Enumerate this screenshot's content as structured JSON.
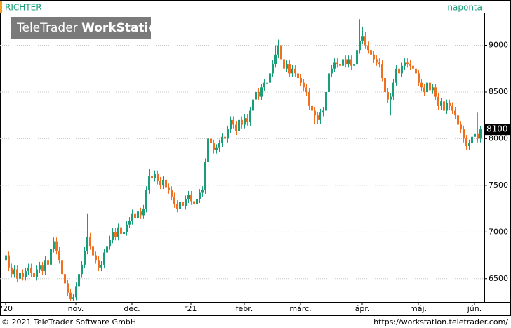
{
  "chart_data": {
    "type": "candlestick",
    "title": "RICHTER",
    "subtitle": "naponta",
    "watermark": {
      "brand": "TeleTrader",
      "product": "WorkStation"
    },
    "footer": {
      "copyright": "© 2021 TeleTrader Software GmbH",
      "url": "https://workstation.teletrader.com/"
    },
    "up_color": "#1a9e78",
    "down_color": "#f07020",
    "xlim": [
      -2,
      170.5
    ],
    "xticks": [
      {
        "value": 0,
        "label": "'20"
      },
      {
        "value": 25,
        "label": "nov."
      },
      {
        "value": 45,
        "label": "dec."
      },
      {
        "value": 66,
        "label": "'21"
      },
      {
        "value": 85,
        "label": "febr."
      },
      {
        "value": 105,
        "label": "márc."
      },
      {
        "value": 127,
        "label": "ápr."
      },
      {
        "value": 147,
        "label": "máj."
      },
      {
        "value": 167,
        "label": "jún."
      }
    ],
    "ylim": [
      6250,
      9350
    ],
    "yticks": [
      6500,
      7000,
      7500,
      8000,
      8500,
      9000
    ],
    "grid": true,
    "open": [
      6700,
      6750,
      6620,
      6550,
      6600,
      6500,
      6560,
      6520,
      6580,
      6620,
      6560,
      6520,
      6600,
      6640,
      6580,
      6700,
      6650,
      6820,
      6900,
      6800,
      6700,
      6550,
      6450,
      6350,
      6280,
      6300,
      6420,
      6550,
      6650,
      6800,
      6950,
      6850,
      6750,
      6700,
      6620,
      6650,
      6780,
      6850,
      6920,
      7000,
      6950,
      7050,
      6980,
      7000,
      7080,
      7120,
      7200,
      7150,
      7220,
      7180,
      7250,
      7450,
      7600,
      7580,
      7620,
      7550,
      7500,
      7560,
      7480,
      7450,
      7380,
      7300,
      7250,
      7320,
      7280,
      7350,
      7400,
      7330,
      7300,
      7350,
      7420,
      7450,
      7750,
      8000,
      7950,
      7880,
      7900,
      7950,
      8020,
      8000,
      8100,
      8200,
      8150,
      8080,
      8200,
      8150,
      8220,
      8180,
      8300,
      8420,
      8500,
      8450,
      8550,
      8600,
      8600,
      8700,
      8800,
      8900,
      9000,
      8850,
      8750,
      8800,
      8700,
      8750,
      8700,
      8650,
      8600,
      8550,
      8500,
      8350,
      8300,
      8250,
      8200,
      8280,
      8300,
      8500,
      8700,
      8750,
      8820,
      8800,
      8780,
      8850,
      8800,
      8850,
      8780,
      8800,
      8950,
      9050,
      9100,
      9000,
      8950,
      8900,
      8850,
      8820,
      8800,
      8650,
      8500,
      8420,
      8450,
      8600,
      8750,
      8700,
      8780,
      8820,
      8800,
      8780,
      8750,
      8700,
      8600,
      8550,
      8500,
      8600,
      8520,
      8550,
      8450,
      8350,
      8400,
      8300,
      8380,
      8350,
      8300,
      8250,
      8150,
      8100,
      8000,
      7920,
      7950,
      8020,
      8050,
      8000
    ],
    "high": [
      6790,
      6790,
      6660,
      6640,
      6640,
      6600,
      6600,
      6620,
      6660,
      6660,
      6600,
      6640,
      6680,
      6680,
      6740,
      6740,
      6860,
      6940,
      6940,
      6840,
      6740,
      6590,
      6490,
      6390,
      6340,
      6460,
      6590,
      6690,
      6840,
      7200,
      6990,
      6890,
      6790,
      6740,
      6690,
      6820,
      6890,
      6960,
      7040,
      7040,
      7090,
      7090,
      7040,
      7120,
      7160,
      7240,
      7240,
      7260,
      7260,
      7290,
      7490,
      7680,
      7640,
      7660,
      7660,
      7590,
      7600,
      7600,
      7520,
      7490,
      7420,
      7340,
      7360,
      7360,
      7390,
      7440,
      7440,
      7370,
      7390,
      7460,
      7490,
      7790,
      8150,
      8040,
      7990,
      7940,
      7990,
      8060,
      8060,
      8140,
      8240,
      8240,
      8190,
      8240,
      8240,
      8260,
      8260,
      8340,
      8460,
      8540,
      8540,
      8590,
      8640,
      8640,
      8740,
      8840,
      9000,
      9060,
      9040,
      8890,
      8840,
      8840,
      8790,
      8790,
      8740,
      8690,
      8640,
      8590,
      8540,
      8390,
      8340,
      8290,
      8320,
      8340,
      8540,
      8740,
      8790,
      8860,
      8860,
      8840,
      8890,
      8890,
      8890,
      8890,
      8840,
      8990,
      9280,
      9200,
      9140,
      9040,
      8990,
      8940,
      8890,
      8860,
      8840,
      8690,
      8540,
      8490,
      8640,
      8790,
      8790,
      8820,
      8860,
      8860,
      8840,
      8820,
      8790,
      8740,
      8640,
      8590,
      8640,
      8640,
      8590,
      8590,
      8490,
      8440,
      8440,
      8420,
      8420,
      8390,
      8340,
      8290,
      8190,
      8140,
      8040,
      7990,
      8060,
      8090,
      8280,
      8140
    ],
    "low": [
      6660,
      6580,
      6510,
      6510,
      6460,
      6460,
      6480,
      6480,
      6540,
      6520,
      6480,
      6480,
      6560,
      6540,
      6540,
      6610,
      6610,
      6780,
      6760,
      6660,
      6510,
      6410,
      6310,
      6260,
      6260,
      6270,
      6380,
      6510,
      6610,
      6760,
      6810,
      6710,
      6660,
      6580,
      6580,
      6610,
      6740,
      6810,
      6880,
      6910,
      6910,
      6940,
      6940,
      6960,
      7040,
      7080,
      7110,
      7110,
      7140,
      7140,
      7210,
      7410,
      7540,
      7540,
      7510,
      7460,
      7460,
      7440,
      7410,
      7340,
      7260,
      7210,
      7210,
      7240,
      7240,
      7310,
      7290,
      7260,
      7260,
      7310,
      7380,
      7410,
      7710,
      7910,
      7840,
      7840,
      7860,
      7910,
      7960,
      7960,
      8060,
      8110,
      8040,
      8040,
      8110,
      8110,
      8140,
      8140,
      8260,
      8380,
      8410,
      8410,
      8510,
      8560,
      8560,
      8660,
      8760,
      8860,
      8810,
      8710,
      8710,
      8660,
      8660,
      8660,
      8610,
      8560,
      8510,
      8460,
      8310,
      8260,
      8160,
      8160,
      8160,
      8240,
      8260,
      8460,
      8660,
      8710,
      8760,
      8740,
      8740,
      8760,
      8760,
      8740,
      8740,
      8760,
      8910,
      9010,
      8960,
      8910,
      8860,
      8810,
      8780,
      8760,
      8610,
      8460,
      8380,
      8250,
      8410,
      8560,
      8660,
      8660,
      8740,
      8760,
      8740,
      8710,
      8660,
      8560,
      8510,
      8460,
      8460,
      8480,
      8480,
      8410,
      8310,
      8310,
      8260,
      8260,
      8310,
      8260,
      8210,
      8060,
      8060,
      7960,
      7880,
      7880,
      7910,
      7980,
      7960,
      7960
    ],
    "close": [
      6750,
      6620,
      6550,
      6600,
      6500,
      6560,
      6520,
      6580,
      6620,
      6560,
      6520,
      6600,
      6640,
      6580,
      6700,
      6650,
      6820,
      6900,
      6800,
      6700,
      6550,
      6450,
      6350,
      6280,
      6300,
      6420,
      6550,
      6650,
      6800,
      6950,
      6850,
      6750,
      6700,
      6620,
      6650,
      6780,
      6850,
      6920,
      7000,
      6950,
      7050,
      6980,
      7000,
      7080,
      7120,
      7200,
      7150,
      7220,
      7180,
      7250,
      7450,
      7600,
      7580,
      7620,
      7550,
      7500,
      7560,
      7480,
      7450,
      7380,
      7300,
      7250,
      7320,
      7280,
      7350,
      7400,
      7330,
      7300,
      7350,
      7420,
      7450,
      7750,
      8000,
      7950,
      7880,
      7900,
      7950,
      8020,
      8000,
      8100,
      8200,
      8150,
      8080,
      8200,
      8150,
      8220,
      8180,
      8300,
      8420,
      8500,
      8450,
      8550,
      8600,
      8600,
      8700,
      8800,
      8900,
      9000,
      8850,
      8750,
      8800,
      8700,
      8750,
      8700,
      8650,
      8600,
      8550,
      8500,
      8350,
      8300,
      8250,
      8200,
      8280,
      8300,
      8500,
      8700,
      8750,
      8820,
      8800,
      8780,
      8850,
      8800,
      8850,
      8780,
      8800,
      8950,
      9050,
      9100,
      9000,
      8950,
      8900,
      8850,
      8820,
      8800,
      8650,
      8500,
      8420,
      8450,
      8600,
      8750,
      8700,
      8780,
      8820,
      8800,
      8780,
      8750,
      8700,
      8600,
      8550,
      8500,
      8600,
      8520,
      8550,
      8450,
      8350,
      8400,
      8300,
      8380,
      8350,
      8300,
      8250,
      8150,
      8100,
      8000,
      7920,
      7950,
      8020,
      8050,
      8000,
      8100
    ]
  }
}
